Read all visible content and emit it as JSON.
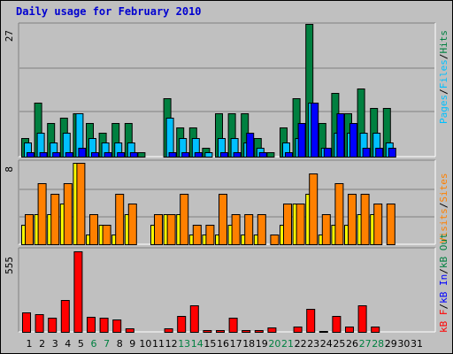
{
  "title": "Daily usage for February 2010",
  "colors": {
    "hits": "#008040",
    "files": "#00c0ff",
    "pages": "#0000ff",
    "visits": "#ffff00",
    "sites": "#ff8000",
    "kbin": "#0000ff",
    "kbout": "#008040",
    "kbf": "#ff0000",
    "weekday_label": "#000000",
    "weekend_label": "#008040"
  },
  "chart_data": [
    {
      "type": "bar",
      "name": "hits-files-pages",
      "max_label": "27",
      "ylim": [
        0,
        27
      ],
      "legend_position": "right",
      "legend": [
        "Pages",
        "/",
        "Files",
        "/",
        "Hits"
      ],
      "categories": [
        "1",
        "2",
        "3",
        "4",
        "5",
        "6",
        "7",
        "8",
        "9",
        "10",
        "11",
        "12",
        "13",
        "14",
        "15",
        "16",
        "17",
        "18",
        "19",
        "20",
        "21",
        "22",
        "23",
        "24",
        "25",
        "26",
        "27",
        "28",
        "29",
        "30",
        "31"
      ],
      "series": [
        {
          "name": "Hits",
          "values": [
            4,
            11,
            7,
            8,
            9,
            7,
            5,
            7,
            7,
            1,
            0,
            12,
            6,
            6,
            2,
            9,
            9,
            9,
            4,
            1,
            6,
            12,
            27,
            7,
            13,
            9,
            14,
            10,
            10,
            0,
            0
          ]
        },
        {
          "name": "Files",
          "values": [
            3,
            5,
            3,
            5,
            9,
            4,
            3,
            3,
            3,
            0,
            0,
            8,
            4,
            4,
            1,
            4,
            4,
            3,
            2,
            0,
            3,
            4,
            11,
            2,
            5,
            5,
            5,
            5,
            3,
            0,
            0
          ]
        },
        {
          "name": "Pages",
          "values": [
            1,
            1,
            1,
            1,
            2,
            1,
            1,
            1,
            1,
            0,
            0,
            1,
            1,
            1,
            0,
            1,
            1,
            5,
            1,
            0,
            1,
            7,
            11,
            2,
            9,
            7,
            2,
            2,
            2,
            0,
            0
          ]
        }
      ]
    },
    {
      "type": "bar",
      "name": "visits-sites",
      "max_label": "8",
      "ylim": [
        0,
        8
      ],
      "legend_position": "right",
      "legend": [
        "Visits",
        "/",
        "Sites"
      ],
      "categories": [
        "1",
        "2",
        "3",
        "4",
        "5",
        "6",
        "7",
        "8",
        "9",
        "10",
        "11",
        "12",
        "13",
        "14",
        "15",
        "16",
        "17",
        "18",
        "19",
        "20",
        "21",
        "22",
        "23",
        "24",
        "25",
        "26",
        "27",
        "28",
        "29",
        "30",
        "31"
      ],
      "series": [
        {
          "name": "Visits",
          "values": [
            2,
            3,
            3,
            4,
            8,
            1,
            2,
            1,
            3,
            0,
            2,
            3,
            3,
            1,
            1,
            1,
            2,
            1,
            1,
            0,
            2,
            4,
            5,
            1,
            2,
            2,
            3,
            3,
            0,
            0,
            0
          ]
        },
        {
          "name": "Sites",
          "values": [
            3,
            6,
            5,
            6,
            8,
            3,
            2,
            5,
            4,
            0,
            3,
            3,
            5,
            2,
            2,
            5,
            3,
            3,
            3,
            1,
            4,
            4,
            7,
            3,
            6,
            5,
            5,
            4,
            4,
            0,
            0
          ]
        }
      ]
    },
    {
      "type": "bar",
      "name": "kbf-kbin-kbout",
      "max_label": "555",
      "ylim": [
        0,
        555
      ],
      "legend_position": "right",
      "legend": [
        "kB F",
        "/",
        "kB In",
        "/",
        "kB Out"
      ],
      "categories": [
        "1",
        "2",
        "3",
        "4",
        "5",
        "6",
        "7",
        "8",
        "9",
        "10",
        "11",
        "12",
        "13",
        "14",
        "15",
        "16",
        "17",
        "18",
        "19",
        "20",
        "21",
        "22",
        "23",
        "24",
        "25",
        "26",
        "27",
        "28",
        "29",
        "30",
        "31"
      ],
      "series": [
        {
          "name": "kB F",
          "values": [
            140,
            125,
            105,
            225,
            555,
            110,
            105,
            90,
            30,
            5,
            0,
            30,
            115,
            190,
            20,
            20,
            105,
            20,
            20,
            35,
            5,
            40,
            160,
            10,
            115,
            45,
            185,
            40,
            0,
            0,
            0
          ]
        }
      ]
    }
  ],
  "weekend_days": [
    6,
    7,
    13,
    14,
    20,
    21,
    27,
    28
  ]
}
